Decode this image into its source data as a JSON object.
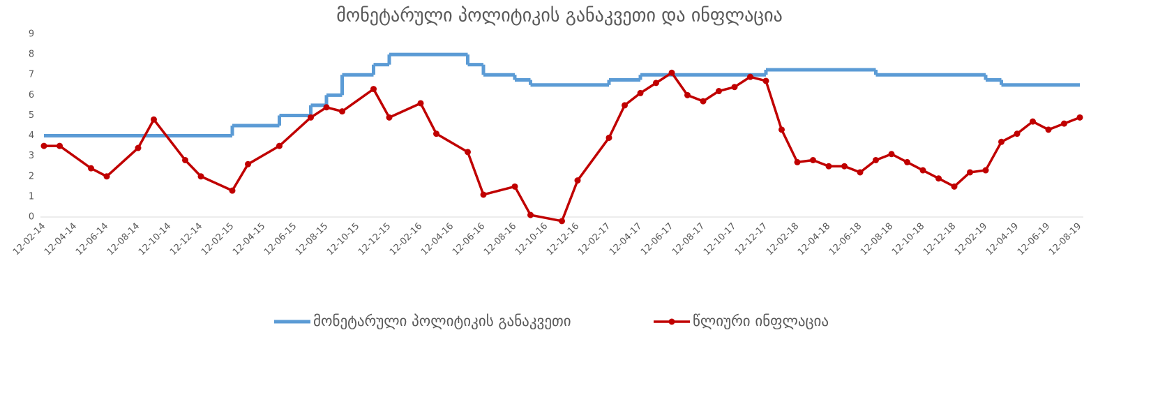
{
  "chart_data": {
    "type": "line",
    "title": "მონეტარული პოლიტიკის განაკვეთი და ინფლაცია",
    "xlim": [
      "12-02-14",
      "12-08-19"
    ],
    "xticks": [
      "12-02-14",
      "12-04-14",
      "12-06-14",
      "12-08-14",
      "12-10-14",
      "12-12-14",
      "12-02-15",
      "12-04-15",
      "12-06-15",
      "12-08-15",
      "12-10-15",
      "12-12-15",
      "12-02-16",
      "12-04-16",
      "12-06-16",
      "12-08-16",
      "12-10-16",
      "12-12-16",
      "12-02-17",
      "12-04-17",
      "12-06-17",
      "12-08-17",
      "12-10-17",
      "12-12-17",
      "12-02-18",
      "12-04-18",
      "12-06-18",
      "12-08-18",
      "12-10-18",
      "12-12-18",
      "12-02-19",
      "12-04-19",
      "12-06-19",
      "12-08-19"
    ],
    "ylim": [
      0,
      9
    ],
    "yticks": [
      0,
      1,
      2,
      3,
      4,
      5,
      6,
      7,
      8,
      9
    ],
    "grid": false,
    "legend": "bottom",
    "series": [
      {
        "name": "მონეტარული პოლიტიკის განაკვეთი",
        "color": "#5b9bd5",
        "step": true,
        "markers": false,
        "x": [
          "12-02-14",
          "12-02-15",
          "12-05-15",
          "12-07-15",
          "12-08-15",
          "12-09-15",
          "12-11-15",
          "12-12-15",
          "12-05-16",
          "12-06-16",
          "12-08-16",
          "12-09-16",
          "12-02-17",
          "12-04-17",
          "12-12-17",
          "12-07-18",
          "12-02-19",
          "12-03-19",
          "12-08-19"
        ],
        "values": [
          4.0,
          4.5,
          5.0,
          5.5,
          6.0,
          7.0,
          7.5,
          8.0,
          7.5,
          7.0,
          6.75,
          6.5,
          6.75,
          7.0,
          7.25,
          7.0,
          6.75,
          6.5,
          6.5
        ]
      },
      {
        "name": "წლიური ინფლაცია",
        "color": "#c00000",
        "step": false,
        "markers": true,
        "x": [
          "12-02-14",
          "12-03-14",
          "12-05-14",
          "12-06-14",
          "12-08-14",
          "12-09-14",
          "12-11-14",
          "12-12-14",
          "12-02-15",
          "12-03-15",
          "12-05-15",
          "12-07-15",
          "12-08-15",
          "12-09-15",
          "12-11-15",
          "12-12-15",
          "12-02-16",
          "12-03-16",
          "12-05-16",
          "12-06-16",
          "12-08-16",
          "12-09-16",
          "12-11-16",
          "12-12-16",
          "12-02-17",
          "12-03-17",
          "12-04-17",
          "12-05-17",
          "12-06-17",
          "12-07-17",
          "12-08-17",
          "12-09-17",
          "12-10-17",
          "12-11-17",
          "12-12-17",
          "12-01-18",
          "12-02-18",
          "12-03-18",
          "12-04-18",
          "12-05-18",
          "12-06-18",
          "12-07-18",
          "12-08-18",
          "12-09-18",
          "12-10-18",
          "12-11-18",
          "12-12-18",
          "12-01-19",
          "12-02-19",
          "12-03-19",
          "12-04-19",
          "12-05-19",
          "12-06-19",
          "12-07-19",
          "12-08-19"
        ],
        "values": [
          3.5,
          3.5,
          2.4,
          2.0,
          3.4,
          4.8,
          2.8,
          2.0,
          1.3,
          2.6,
          3.5,
          4.9,
          5.4,
          5.2,
          6.3,
          4.9,
          5.6,
          4.1,
          3.2,
          1.1,
          1.5,
          0.1,
          -0.2,
          1.8,
          3.9,
          5.5,
          6.1,
          6.6,
          7.1,
          6.0,
          5.7,
          6.2,
          6.4,
          6.9,
          6.7,
          4.3,
          2.7,
          2.8,
          2.5,
          2.5,
          2.2,
          2.8,
          3.1,
          2.7,
          2.3,
          1.9,
          1.5,
          2.2,
          2.3,
          3.7,
          4.1,
          4.7,
          4.3,
          4.6,
          4.9
        ]
      }
    ]
  }
}
